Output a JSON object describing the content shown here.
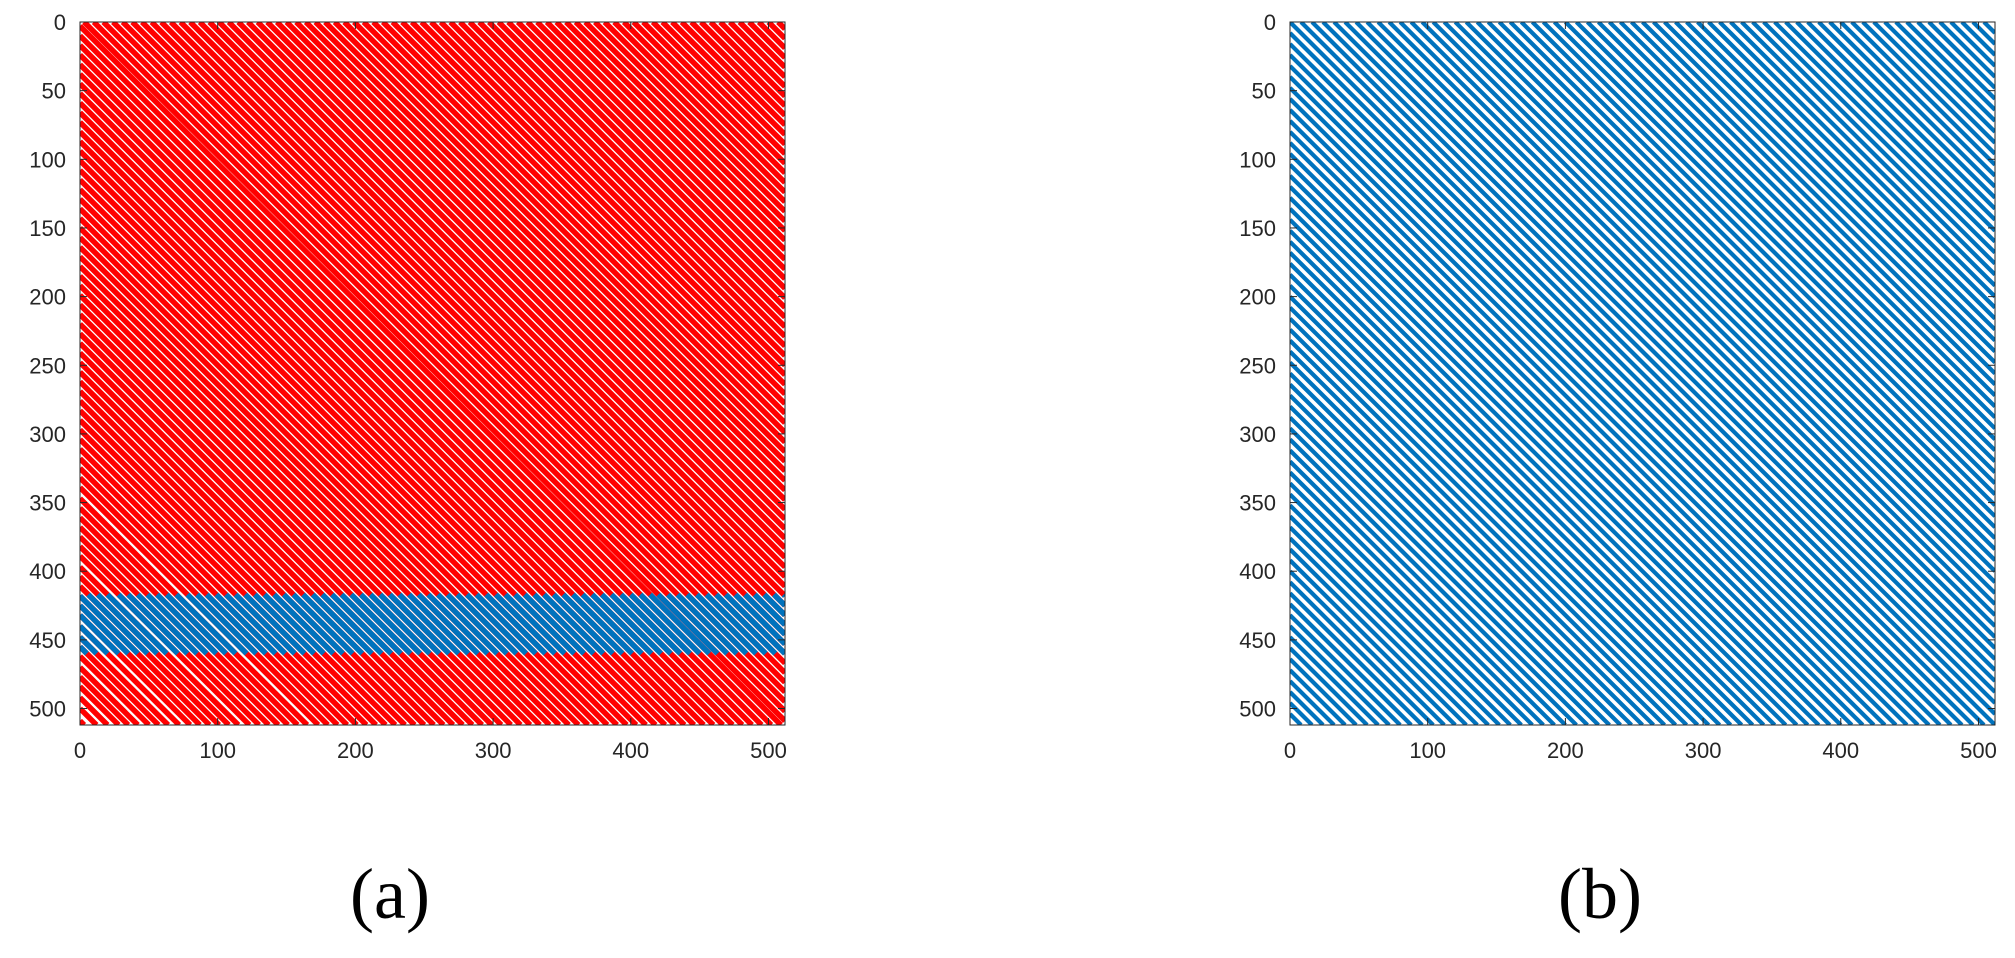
{
  "chart_data": [
    {
      "type": "scatter",
      "panel_label": "(a)",
      "xlim": [
        0,
        512
      ],
      "ylim": [
        0,
        512
      ],
      "y_reversed": true,
      "x_ticks": [
        "0",
        "100",
        "200",
        "300",
        "400",
        "500"
      ],
      "y_ticks": [
        "0",
        "50",
        "100",
        "150",
        "200",
        "250",
        "300",
        "350",
        "400",
        "450",
        "500"
      ],
      "x_tick_values": [
        0,
        100,
        200,
        300,
        400,
        500
      ],
      "y_tick_values": [
        0,
        50,
        100,
        150,
        200,
        250,
        300,
        350,
        400,
        450,
        500
      ],
      "grid": false,
      "series": [
        {
          "color": "#ff0000",
          "description_values": "nonzero diagonals (column - row offsets)",
          "diagonal_offsets": [
            -509,
            -500,
            -492,
            -484,
            -477,
            -470,
            -462,
            -455,
            -448,
            -440,
            -432,
            -425,
            -418,
            -411,
            -404,
            -397,
            -389,
            -382,
            -375,
            -368,
            -361,
            -354,
            -347,
            -339,
            -332,
            -325,
            -318,
            -311,
            -304,
            -297,
            -290,
            -283,
            -276,
            -269,
            -262,
            -255,
            -248,
            -241,
            -234,
            -227,
            -220,
            -213,
            -206,
            -199,
            -192,
            -185,
            -178,
            -171,
            -164,
            -157,
            -150,
            -143,
            -136,
            -129,
            -122,
            -115,
            -108,
            -101,
            -94,
            -87,
            -80,
            -73,
            -66,
            -59,
            -52,
            -45,
            -38,
            -31,
            -24,
            -17,
            -10,
            -3,
            3,
            10,
            17,
            24,
            31,
            38,
            45,
            52,
            59,
            66,
            73,
            80,
            87,
            94,
            101,
            108,
            115,
            122,
            129,
            136,
            143,
            150,
            157,
            164,
            171,
            178,
            185,
            192,
            199,
            206,
            213,
            220,
            227,
            234,
            241,
            248,
            255,
            262,
            269,
            276,
            283,
            290,
            297,
            304,
            311,
            318,
            325,
            332,
            339,
            346,
            353,
            360,
            367,
            374,
            381,
            388,
            395,
            402,
            409,
            416,
            423,
            430,
            437,
            444,
            451,
            458,
            465,
            472,
            479,
            486,
            493,
            500,
            507
          ]
        },
        {
          "color": "#0072bd",
          "description_values": "same diagonals restricted to rows 417-460",
          "row_range": [
            417,
            460
          ]
        }
      ]
    },
    {
      "type": "scatter",
      "panel_label": "(b)",
      "xlim": [
        0,
        512
      ],
      "ylim": [
        0,
        512
      ],
      "y_reversed": true,
      "x_ticks": [
        "0",
        "100",
        "200",
        "300",
        "400",
        "500"
      ],
      "y_ticks": [
        "0",
        "50",
        "100",
        "150",
        "200",
        "250",
        "300",
        "350",
        "400",
        "450",
        "500"
      ],
      "x_tick_values": [
        0,
        100,
        200,
        300,
        400,
        500
      ],
      "y_tick_values": [
        0,
        50,
        100,
        150,
        200,
        250,
        300,
        350,
        400,
        450,
        500
      ],
      "grid": false,
      "series": [
        {
          "color": "#0072bd",
          "description_values": "evenly spaced nonzero diagonals",
          "diagonal_spacing": 8
        }
      ]
    }
  ]
}
